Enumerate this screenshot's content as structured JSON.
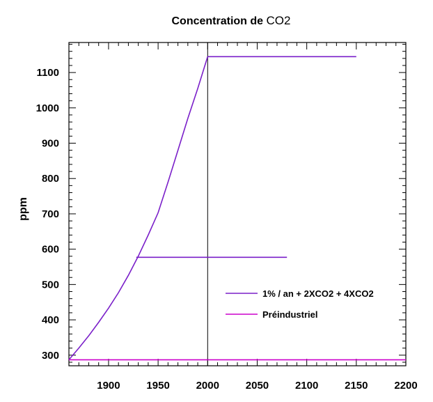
{
  "chart_data": {
    "type": "line",
    "title_prefix": "Concentration de ",
    "title_suffix": "CO2",
    "ylabel": "ppm",
    "xlabel": "",
    "xlim": [
      1860,
      2200
    ],
    "ylim": [
      270,
      1185
    ],
    "x_ticks": [
      1900,
      1950,
      2000,
      2050,
      2100,
      2150,
      2200
    ],
    "y_ticks": [
      300,
      400,
      500,
      600,
      700,
      800,
      900,
      1000,
      1100
    ],
    "grid": false,
    "reference_line_x": 2000,
    "legend_position": "lower-right",
    "series": [
      {
        "name": "1% / an + 2XCO2 + 4XCO2",
        "color": "#7a1fc9",
        "segments": [
          {
            "x": [
              1860,
              1870,
              1880,
              1890,
              1900,
              1910,
              1920,
              1930,
              1940,
              1950,
              1960,
              1970,
              1980,
              1990,
              2000
            ],
            "y": [
              287,
              320,
              355,
              393,
              433,
              477,
              526,
              580,
              640,
              703,
              790,
              880,
              970,
              1055,
              1145
            ]
          },
          {
            "x": [
              2000,
              2150
            ],
            "y": [
              1145,
              1145
            ]
          },
          {
            "x": [
              1928,
              2080
            ],
            "y": [
              577,
              577
            ]
          }
        ]
      },
      {
        "name": "Préindustriel",
        "color": "#cc00cc",
        "segments": [
          {
            "x": [
              1860,
              2200
            ],
            "y": [
              287,
              287
            ]
          }
        ]
      }
    ]
  }
}
